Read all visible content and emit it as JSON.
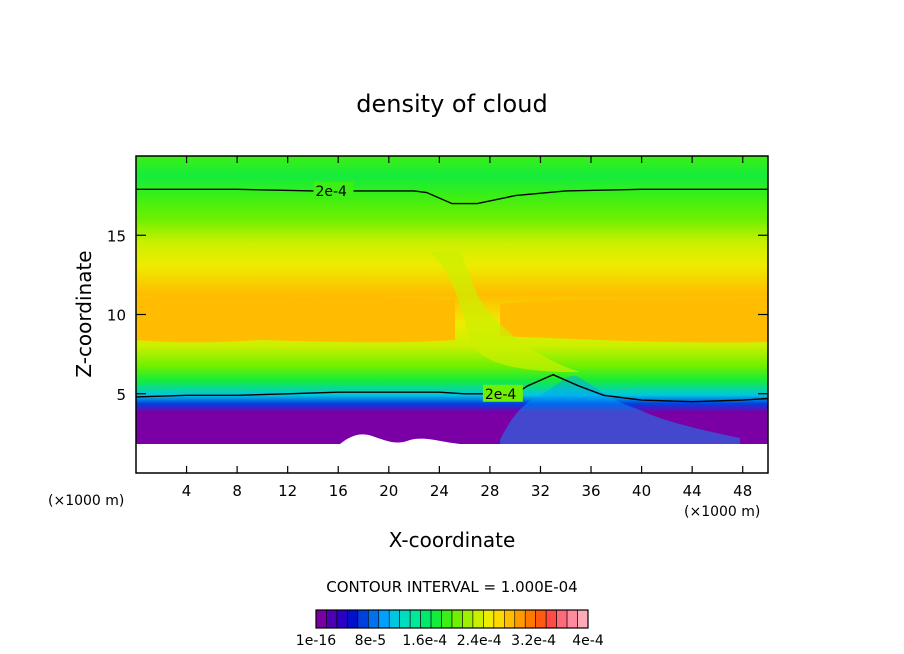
{
  "chart_data": {
    "type": "heatmap",
    "title": "density of cloud",
    "xlabel": "X-coordinate",
    "ylabel": "Z-coordinate",
    "x_unit": "(×1000 m)",
    "xlim": [
      0,
      50
    ],
    "ylim": [
      0,
      20
    ],
    "x_ticks": [
      4,
      8,
      12,
      16,
      20,
      24,
      28,
      32,
      36,
      40,
      44,
      48
    ],
    "y_ticks": [
      5,
      10,
      15
    ],
    "contour_interval_text": "CONTOUR INTERVAL = 1.000E-04",
    "contour_label": "2e-4",
    "contour_lines": [
      {
        "label": "2e-4",
        "points": [
          [
            0,
            17.9
          ],
          [
            8,
            17.9
          ],
          [
            14,
            17.8
          ],
          [
            20,
            17.8
          ],
          [
            22,
            17.8
          ],
          [
            23,
            17.7
          ],
          [
            25,
            17.0
          ],
          [
            27,
            17.0
          ],
          [
            30,
            17.5
          ],
          [
            34,
            17.8
          ],
          [
            40,
            17.9
          ],
          [
            50,
            17.9
          ]
        ]
      },
      {
        "label": "2e-4",
        "points": [
          [
            0,
            4.8
          ],
          [
            4,
            4.9
          ],
          [
            8,
            4.9
          ],
          [
            12,
            5.0
          ],
          [
            16,
            5.1
          ],
          [
            20,
            5.1
          ],
          [
            24,
            5.1
          ],
          [
            26,
            5.0
          ],
          [
            28,
            5.0
          ],
          [
            30,
            5.0
          ],
          [
            31,
            5.5
          ],
          [
            33,
            6.2
          ],
          [
            35,
            5.5
          ],
          [
            37,
            4.9
          ],
          [
            40,
            4.6
          ],
          [
            44,
            4.5
          ],
          [
            48,
            4.6
          ],
          [
            50,
            4.7
          ]
        ]
      }
    ],
    "colorbar": {
      "colors": [
        "#7a00a6",
        "#4b00b3",
        "#2a00c4",
        "#0010cc",
        "#0040e0",
        "#0070ee",
        "#00a0ff",
        "#00c6e0",
        "#00dcc0",
        "#00e89a",
        "#00ea6a",
        "#14ec3c",
        "#3cef14",
        "#6ef000",
        "#9ef000",
        "#caf000",
        "#eeec00",
        "#ffd800",
        "#ffbc00",
        "#ff9a00",
        "#ff7800",
        "#ff5a10",
        "#ff4a48",
        "#ff6a7a",
        "#ff8aa0",
        "#ffaab8"
      ],
      "labels": [
        "1e-16",
        "8e-5",
        "1.6e-4",
        "2.4e-4",
        "3.2e-4",
        "4e-4"
      ]
    },
    "grid": false
  }
}
